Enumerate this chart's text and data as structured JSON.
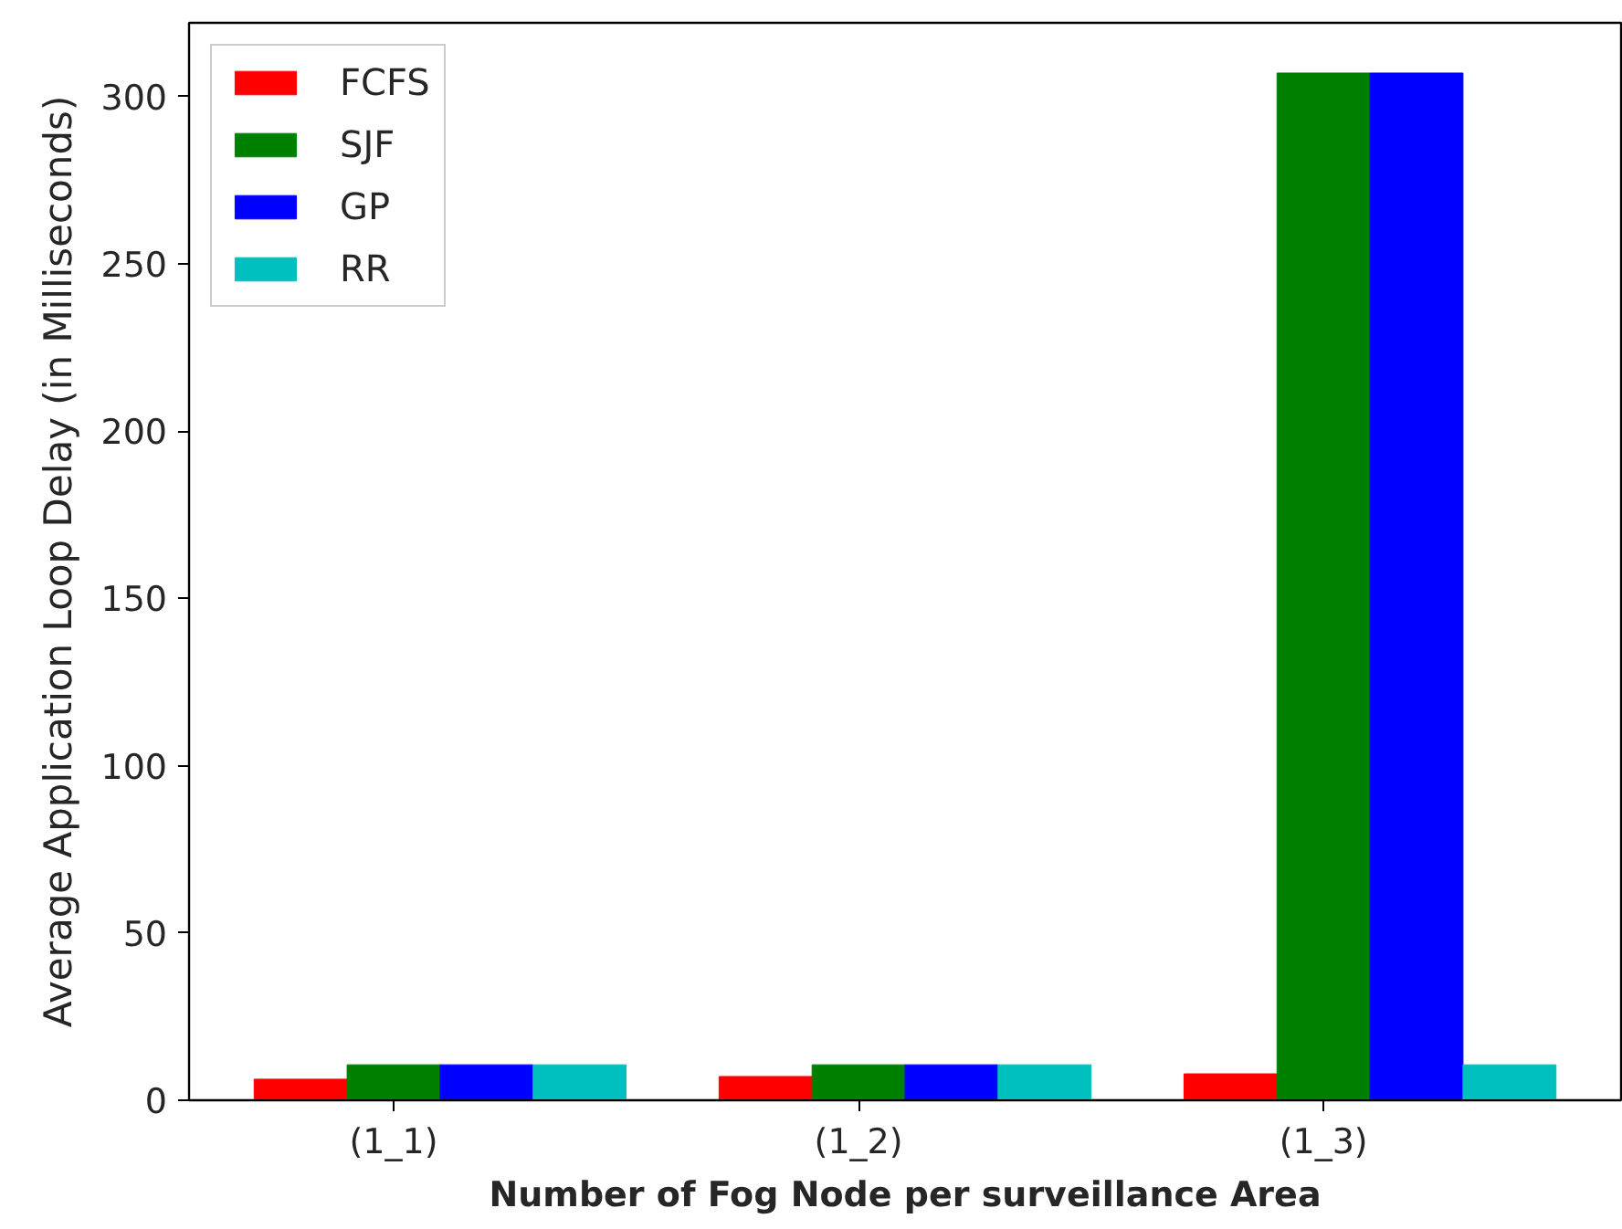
{
  "chart_data": {
    "type": "bar",
    "xlabel": "Number of Fog Node per surveillance Area",
    "ylabel": "Average Application Loop Delay (in Milliseconds)",
    "categories": [
      "(1_1)",
      "(1_2)",
      "(1_3)"
    ],
    "series": [
      {
        "name": "FCFS",
        "color": "#ff0000",
        "values": [
          6.3,
          7.1,
          7.9
        ]
      },
      {
        "name": "SJF",
        "color": "#008000",
        "values": [
          10.6,
          10.6,
          307
        ]
      },
      {
        "name": "GP",
        "color": "#0000ff",
        "values": [
          10.6,
          10.6,
          307
        ]
      },
      {
        "name": "RR",
        "color": "#00bfbf",
        "values": [
          10.6,
          10.6,
          10.6
        ]
      }
    ],
    "ylim": [
      0,
      322
    ],
    "yticks": [
      0,
      50,
      100,
      150,
      200,
      250,
      300
    ],
    "grid": false,
    "legend": "top left"
  }
}
